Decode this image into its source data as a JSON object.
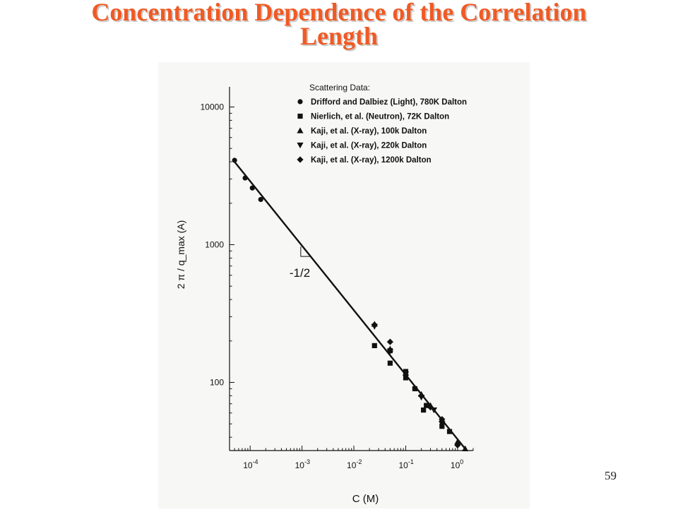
{
  "slide": {
    "title_line1": "Concentration Dependence of the Correlation",
    "title_line2": "Length",
    "page_number": "59"
  },
  "colors": {
    "title": "#f05a24",
    "ink": "#111111",
    "figure_bg": "#f7f7f5"
  },
  "chart_data": {
    "type": "scatter",
    "xscale": "log",
    "yscale": "log",
    "xlabel": "C (M)",
    "ylabel": "2 π / q_max (A)",
    "xlim": [
      4e-05,
      2
    ],
    "ylim": [
      32,
      14000
    ],
    "x_ticks": [
      {
        "value": 0.0001,
        "base": "10",
        "exp": "-4"
      },
      {
        "value": 0.001,
        "base": "10",
        "exp": "-3"
      },
      {
        "value": 0.01,
        "base": "10",
        "exp": "-2"
      },
      {
        "value": 0.1,
        "base": "10",
        "exp": "-1"
      },
      {
        "value": 1,
        "base": "10",
        "exp": "0"
      }
    ],
    "y_ticks": [
      {
        "value": 100,
        "label": "100"
      },
      {
        "value": 1000,
        "label": "1000"
      },
      {
        "value": 10000,
        "label": "10000"
      }
    ],
    "legend_title": "Scattering Data:",
    "legend_position": "top-right",
    "fit_line": {
      "x": [
        5e-05,
        1.4
      ],
      "y": [
        4000,
        33
      ]
    },
    "slope_annotation": "-1/2",
    "series": [
      {
        "name": "Drifford and Dalbiez (Light), 780K Dalton",
        "marker": "circle",
        "x": [
          5e-05,
          8e-05,
          0.00011,
          0.00016
        ],
        "y": [
          4100,
          3050,
          2580,
          2130
        ]
      },
      {
        "name": "Nierlich, et al. (Neutron), 72K Dalton",
        "marker": "square",
        "x": [
          0.025,
          0.05,
          0.05,
          0.1,
          0.1,
          0.15,
          0.22,
          0.25,
          0.5,
          0.7
        ],
        "y": [
          185,
          170,
          138,
          120,
          108,
          90,
          63,
          68,
          48,
          44
        ]
      },
      {
        "name": "Kaji,  et al. (X-ray), 100k Dalton",
        "marker": "triangle-up",
        "x": [
          0.025,
          0.05,
          0.2,
          0.3,
          0.5,
          1.0,
          1.4
        ],
        "y": [
          265,
          175,
          82,
          68,
          54,
          37,
          33
        ]
      },
      {
        "name": "Kaji,  et al. (X-ray), 220k Dalton",
        "marker": "triangle-down",
        "x": [
          0.025,
          0.05,
          0.1,
          0.2,
          0.35,
          0.5
        ],
        "y": [
          255,
          168,
          115,
          78,
          63,
          50
        ]
      },
      {
        "name": "Kaji,  et al. (X-ray), 1200k Dalton",
        "marker": "diamond",
        "x": [
          0.025,
          0.05,
          0.1,
          0.2,
          0.3,
          0.5,
          1.0
        ],
        "y": [
          262,
          197,
          113,
          80,
          66,
          54,
          35
        ]
      }
    ]
  }
}
